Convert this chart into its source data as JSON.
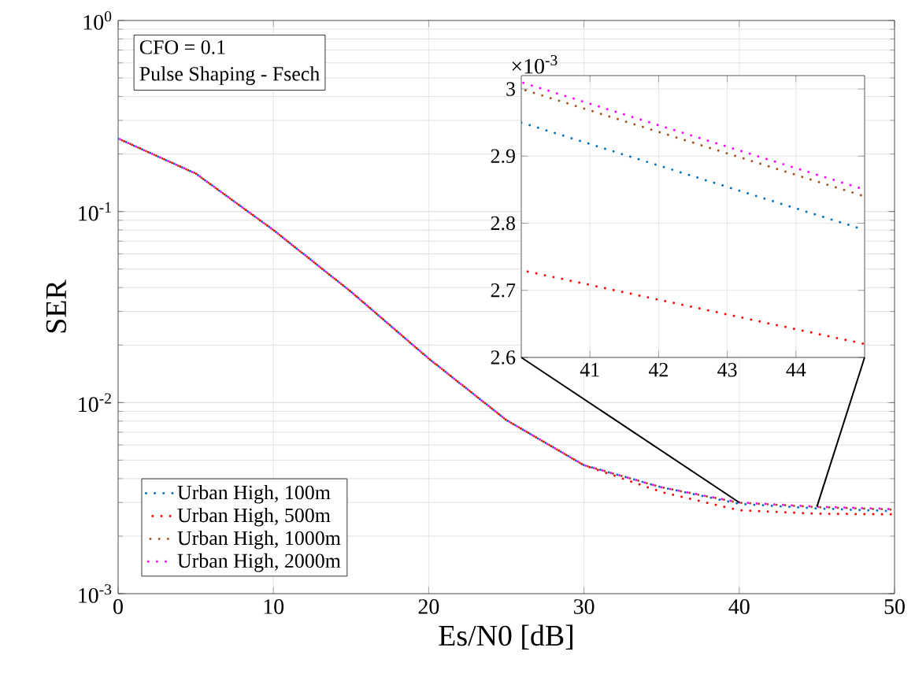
{
  "chart_data": [
    {
      "type": "line",
      "xlabel": "Es/N0 [dB]",
      "ylabel": "SER",
      "annotations": [
        "CFO = 0.1",
        "Pulse Shaping - Fsech"
      ],
      "x": [
        0,
        5,
        10,
        15,
        20,
        25,
        30,
        35,
        40,
        45,
        50
      ],
      "series": [
        {
          "name": "Urban High, 100m",
          "color": "#0072bd",
          "values": [
            0.241,
            0.158,
            0.08,
            0.038,
            0.017,
            0.0081,
            0.0047,
            0.0036,
            0.00295,
            0.00279,
            0.0027
          ]
        },
        {
          "name": "Urban High, 500m",
          "color": "#ff0000",
          "values": [
            0.241,
            0.158,
            0.08,
            0.038,
            0.017,
            0.0081,
            0.0047,
            0.0034,
            0.00273,
            0.00262,
            0.0026
          ]
        },
        {
          "name": "Urban High, 1000m",
          "color": "#a2501e",
          "values": [
            0.241,
            0.158,
            0.08,
            0.038,
            0.017,
            0.0081,
            0.0047,
            0.0036,
            0.00299,
            0.00284,
            0.00275
          ]
        },
        {
          "name": "Urban High, 2000m",
          "color": "#ff00ff",
          "values": [
            0.241,
            0.158,
            0.08,
            0.038,
            0.017,
            0.0081,
            0.0047,
            0.0036,
            0.003,
            0.00285,
            0.00277
          ]
        }
      ],
      "xlim": [
        0,
        50
      ],
      "xticks": [
        0,
        10,
        20,
        30,
        40,
        50
      ],
      "ylim": [
        0.001,
        1
      ],
      "log": "y",
      "yticks": [
        {
          "value": 0.001,
          "label": "10$^{-3}$"
        },
        {
          "value": 0.01,
          "label": "10$^{-2}$"
        },
        {
          "value": 0.1,
          "label": "10$^{-1}$"
        },
        {
          "value": 1,
          "label": "10$^{0}$"
        }
      ],
      "grid": true,
      "legend": "bottom left",
      "line_style": "dotted",
      "marker": "none"
    },
    {
      "type": "line",
      "annotations": [
        "×10$^{-3}$"
      ],
      "x": [
        40,
        45
      ],
      "series": [
        {
          "color": "#0072bd",
          "values": [
            2.95,
            2.79
          ]
        },
        {
          "color": "#ff0000",
          "values": [
            2.73,
            2.62
          ]
        },
        {
          "color": "#a2501e",
          "values": [
            3.0,
            2.84
          ]
        },
        {
          "color": "#ff00ff",
          "values": [
            3.01,
            2.85
          ]
        }
      ],
      "xlim": [
        40,
        45
      ],
      "xticks": [
        41,
        42,
        43,
        44
      ],
      "ylim": [
        2.6,
        3.02
      ],
      "yticks": [
        2.6,
        2.7,
        2.8,
        2.9,
        3
      ],
      "grid": true,
      "line_style": "dotted",
      "marker": "none"
    }
  ]
}
